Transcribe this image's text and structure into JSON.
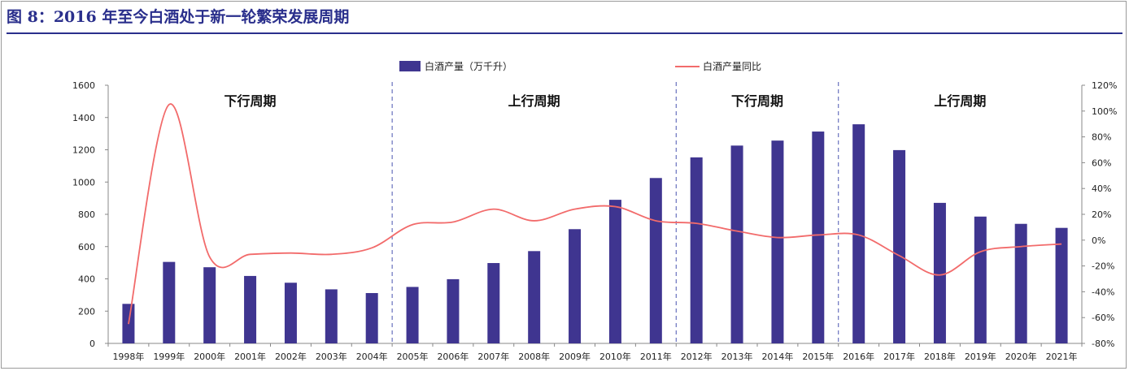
{
  "title": "图 8：2016 年至今白酒处于新一轮繁荣发展周期",
  "colors": {
    "bar": "#3f3590",
    "line": "#f26b6b",
    "title": "#2a2f8c",
    "divider": "#4a55b0"
  },
  "chart_data": {
    "type": "bar",
    "categories": [
      "1998年",
      "1999年",
      "2000年",
      "2001年",
      "2002年",
      "2003年",
      "2004年",
      "2005年",
      "2006年",
      "2007年",
      "2008年",
      "2009年",
      "2010年",
      "2011年",
      "2012年",
      "2013年",
      "2014年",
      "2015年",
      "2016年",
      "2017年",
      "2018年",
      "2019年",
      "2020年",
      "2021年"
    ],
    "series": [
      {
        "name": "白酒产量（万千升）",
        "type": "bar",
        "axis": "left",
        "values": [
          245,
          505,
          472,
          418,
          376,
          335,
          312,
          350,
          398,
          498,
          572,
          708,
          890,
          1025,
          1153,
          1226,
          1257,
          1313,
          1358,
          1198,
          871,
          786,
          741,
          716
        ]
      },
      {
        "name": "白酒产量同比",
        "type": "line",
        "axis": "right",
        "values": [
          -65,
          105,
          -13,
          -11,
          -10,
          -11,
          -6,
          12,
          14,
          24,
          15,
          24,
          26,
          15,
          13,
          7,
          2,
          4,
          4,
          -12,
          -27,
          -9,
          -5,
          -3
        ]
      }
    ],
    "yleft": {
      "min": 0,
      "max": 1600,
      "ticks": [
        "0",
        "200",
        "400",
        "600",
        "800",
        "1000",
        "1200",
        "1400",
        "1600"
      ]
    },
    "yright": {
      "min": -80,
      "max": 120,
      "ticks": [
        "-80%",
        "-60%",
        "-40%",
        "-20%",
        "0%",
        "20%",
        "40%",
        "60%",
        "80%",
        "100%",
        "120%"
      ]
    },
    "legend_position": "top-center",
    "phases": [
      {
        "label": "下行周期",
        "from": "1998年",
        "to": "2004年"
      },
      {
        "label": "上行周期",
        "from": "2005年",
        "to": "2011年"
      },
      {
        "label": "下行周期",
        "from": "2012年",
        "to": "2015年"
      },
      {
        "label": "上行周期",
        "from": "2016年",
        "to": "2021年"
      }
    ]
  }
}
